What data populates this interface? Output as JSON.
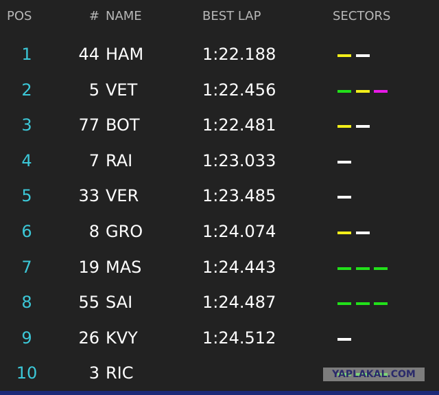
{
  "header": {
    "pos": "POS",
    "number": "#",
    "name": "NAME",
    "best_lap": "BEST LAP",
    "sectors": "SECTORS"
  },
  "rows": [
    {
      "pos": "1",
      "number": "44",
      "name": "HAM",
      "best_lap": "1:22.188",
      "sectors": [
        "#f2ee1a",
        "#ffffff"
      ]
    },
    {
      "pos": "2",
      "number": "5",
      "name": "VET",
      "best_lap": "1:22.456",
      "sectors": [
        "#22e01a",
        "#f2ee1a",
        "#e81ae8"
      ]
    },
    {
      "pos": "3",
      "number": "77",
      "name": "BOT",
      "best_lap": "1:22.481",
      "sectors": [
        "#f2ee1a",
        "#ffffff"
      ]
    },
    {
      "pos": "4",
      "number": "7",
      "name": "RAI",
      "best_lap": "1:23.033",
      "sectors": [
        "#ffffff"
      ]
    },
    {
      "pos": "5",
      "number": "33",
      "name": "VER",
      "best_lap": "1:23.485",
      "sectors": [
        "#ffffff"
      ]
    },
    {
      "pos": "6",
      "number": "8",
      "name": "GRO",
      "best_lap": "1:24.074",
      "sectors": [
        "#f2ee1a",
        "#ffffff"
      ]
    },
    {
      "pos": "7",
      "number": "19",
      "name": "MAS",
      "best_lap": "1:24.443",
      "sectors": [
        "#22e01a",
        "#22e01a",
        "#22e01a"
      ]
    },
    {
      "pos": "8",
      "number": "55",
      "name": "SAI",
      "best_lap": "1:24.487",
      "sectors": [
        "#22e01a",
        "#22e01a",
        "#22e01a"
      ]
    },
    {
      "pos": "9",
      "number": "26",
      "name": "KVY",
      "best_lap": "1:24.512",
      "sectors": [
        "#ffffff"
      ]
    },
    {
      "pos": "10",
      "number": "3",
      "name": "RIC",
      "sectors": [
        "#22e01a",
        "#22e01a",
        "#22e01a"
      ]
    }
  ],
  "watermark": "YAPLAKAL.COM"
}
